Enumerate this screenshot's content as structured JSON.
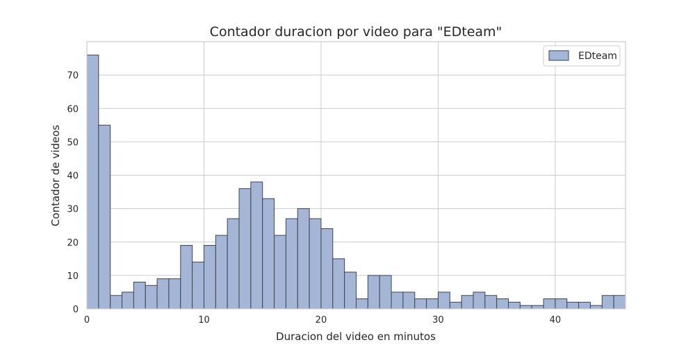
{
  "chart_data": {
    "type": "bar",
    "title": "Contador duracion por video para \"EDteam\"",
    "xlabel": "Duracion del video en minutos",
    "ylabel": "Contador de videos",
    "xlim": [
      0,
      46
    ],
    "ylim": [
      0,
      80
    ],
    "xticks": [
      0,
      10,
      20,
      30,
      40
    ],
    "yticks": [
      0,
      10,
      20,
      30,
      40,
      50,
      60,
      70
    ],
    "grid": true,
    "legend_position": "top-right",
    "colors": {
      "bar_fill": "#a4b5d6",
      "bar_edge": "#3d4452",
      "grid": "#cccccc",
      "frame": "#cccccc"
    },
    "series": [
      {
        "name": "EDteam",
        "bin_width": 1,
        "bin_start": [
          0,
          1,
          2,
          3,
          4,
          5,
          6,
          7,
          8,
          9,
          10,
          11,
          12,
          13,
          14,
          15,
          16,
          17,
          18,
          19,
          20,
          21,
          22,
          23,
          24,
          25,
          26,
          27,
          28,
          29,
          30,
          31,
          32,
          33,
          34,
          35,
          36,
          37,
          38,
          39,
          40,
          41,
          42,
          43,
          44,
          45
        ],
        "values": [
          76,
          55,
          4,
          5,
          8,
          7,
          9,
          9,
          19,
          14,
          19,
          22,
          27,
          36,
          38,
          33,
          22,
          27,
          30,
          27,
          24,
          15,
          11,
          3,
          10,
          10,
          5,
          5,
          3,
          3,
          5,
          2,
          4,
          5,
          4,
          3,
          2,
          1,
          1,
          3,
          3,
          2,
          2,
          1,
          4,
          4
        ]
      }
    ]
  }
}
